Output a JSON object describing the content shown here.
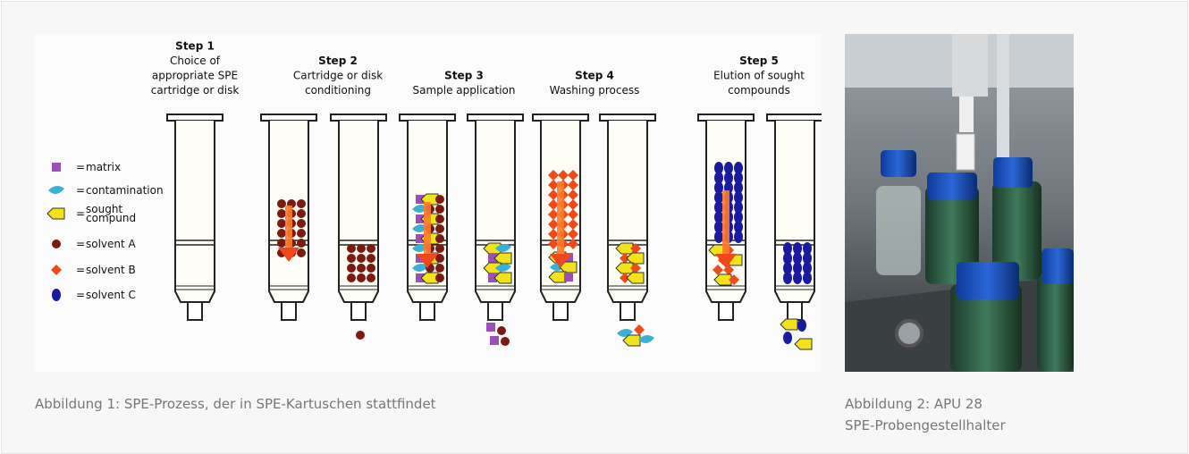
{
  "figures": [
    {
      "diagram": {
        "steps": [
          {
            "title": "Step 1",
            "lines": [
              "Choice of",
              "appropriate SPE",
              "cartridge or disk"
            ]
          },
          {
            "title": "Step 2",
            "lines": [
              "Cartridge or disk",
              "conditioning"
            ]
          },
          {
            "title": "Step 3",
            "lines": [
              "Sample application"
            ]
          },
          {
            "title": "Step 4",
            "lines": [
              "Washing process"
            ]
          },
          {
            "title": "Step 5",
            "lines": [
              "Elution of sought",
              "compounds"
            ]
          }
        ],
        "legend": [
          {
            "sign": "=",
            "label": [
              "matrix"
            ]
          },
          {
            "sign": "=",
            "label": [
              "contamination"
            ]
          },
          {
            "sign": "=",
            "label": [
              "sought",
              "compund"
            ]
          },
          {
            "sign": "=",
            "label": [
              "solvent A"
            ]
          },
          {
            "sign": "=",
            "label": [
              "solvent B"
            ]
          },
          {
            "sign": "=",
            "label": [
              "solvent C"
            ]
          }
        ]
      },
      "caption": [
        "Abbildung 1: SPE-Prozess, der in SPE-Kartuschen stattfindet"
      ]
    },
    {
      "caption": [
        "Abbildung 2: APU 28",
        "SPE-Probengestellhalter"
      ]
    }
  ]
}
